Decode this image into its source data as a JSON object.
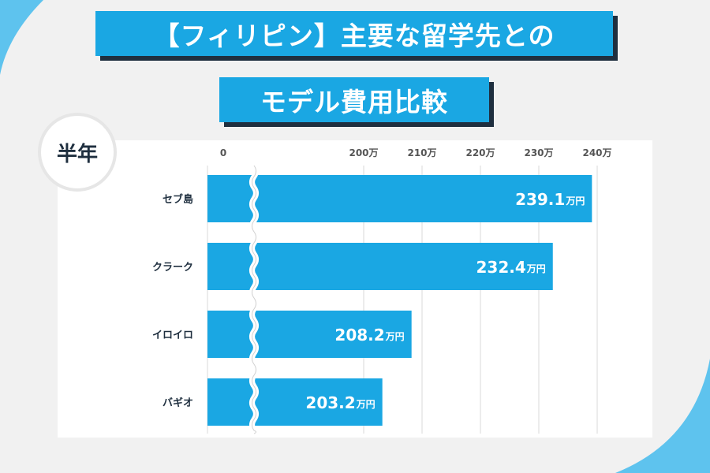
{
  "title": {
    "line1": "【フィリピン】主要な留学先との",
    "line2": "モデル費用比較"
  },
  "period_label": "半年",
  "colors": {
    "background": "#f1f1f1",
    "bar": "#1aa7e3",
    "title_bg": "#1aa7e3",
    "title_shadow": "#1f2f3f",
    "accent_arc": "#5ec3ee",
    "text_dark": "#1f2f3f"
  },
  "chart_data": {
    "type": "bar",
    "orientation": "horizontal",
    "categories": [
      "セブ島",
      "クラーク",
      "イロイロ",
      "バギオ"
    ],
    "values": [
      239.1,
      232.4,
      208.2,
      203.2
    ],
    "value_suffix": "万円",
    "axis_break": true,
    "xlim": [
      190,
      240
    ],
    "x_ticks": [
      0,
      200,
      210,
      220,
      230,
      240
    ],
    "x_tick_labels": [
      "0",
      "200万",
      "210万",
      "220万",
      "230万",
      "240万"
    ],
    "grid": true,
    "title": "",
    "xlabel": "",
    "ylabel": ""
  }
}
